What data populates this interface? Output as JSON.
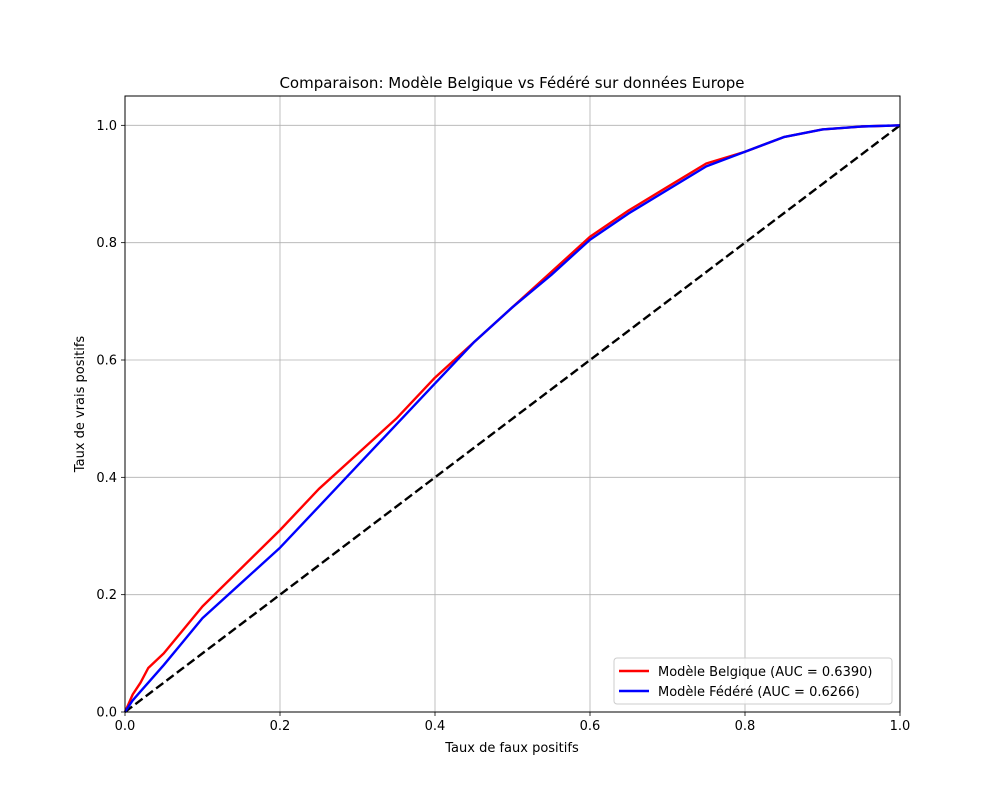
{
  "chart_data": {
    "type": "line",
    "title": "Comparaison: Modèle Belgique vs Fédéré sur données Europe",
    "xlabel": "Taux de faux positifs",
    "ylabel": "Taux de vrais positifs",
    "xlim": [
      0.0,
      1.0
    ],
    "ylim": [
      0.0,
      1.05
    ],
    "x_ticks": [
      "0.0",
      "0.2",
      "0.4",
      "0.6",
      "0.8",
      "1.0"
    ],
    "y_ticks": [
      "0.0",
      "0.2",
      "0.4",
      "0.6",
      "0.8",
      "1.0"
    ],
    "grid": true,
    "legend_position": "lower-right",
    "series": [
      {
        "name": "Modèle Belgique (AUC = 0.6390)",
        "color": "#ff0000",
        "style": "solid",
        "points": [
          [
            0,
            0
          ],
          [
            0.01,
            0.03
          ],
          [
            0.02,
            0.05
          ],
          [
            0.03,
            0.075
          ],
          [
            0.05,
            0.1
          ],
          [
            0.075,
            0.14
          ],
          [
            0.1,
            0.18
          ],
          [
            0.15,
            0.245
          ],
          [
            0.2,
            0.31
          ],
          [
            0.25,
            0.38
          ],
          [
            0.3,
            0.44
          ],
          [
            0.35,
            0.5
          ],
          [
            0.4,
            0.57
          ],
          [
            0.45,
            0.63
          ],
          [
            0.5,
            0.69
          ],
          [
            0.55,
            0.75
          ],
          [
            0.6,
            0.81
          ],
          [
            0.65,
            0.855
          ],
          [
            0.7,
            0.895
          ],
          [
            0.75,
            0.935
          ],
          [
            0.8,
            0.955
          ],
          [
            0.85,
            0.98
          ],
          [
            0.9,
            0.993
          ],
          [
            0.95,
            0.998
          ],
          [
            1.0,
            1.0
          ]
        ]
      },
      {
        "name": "Modèle Fédéré (AUC = 0.6266)",
        "color": "#0000ff",
        "style": "solid",
        "points": [
          [
            0,
            0
          ],
          [
            0.01,
            0.02
          ],
          [
            0.02,
            0.035
          ],
          [
            0.03,
            0.05
          ],
          [
            0.05,
            0.08
          ],
          [
            0.075,
            0.12
          ],
          [
            0.1,
            0.16
          ],
          [
            0.15,
            0.22
          ],
          [
            0.2,
            0.28
          ],
          [
            0.25,
            0.35
          ],
          [
            0.3,
            0.42
          ],
          [
            0.35,
            0.49
          ],
          [
            0.4,
            0.56
          ],
          [
            0.45,
            0.63
          ],
          [
            0.5,
            0.69
          ],
          [
            0.55,
            0.745
          ],
          [
            0.6,
            0.805
          ],
          [
            0.65,
            0.85
          ],
          [
            0.7,
            0.89
          ],
          [
            0.75,
            0.93
          ],
          [
            0.8,
            0.955
          ],
          [
            0.85,
            0.98
          ],
          [
            0.9,
            0.993
          ],
          [
            0.95,
            0.998
          ],
          [
            1.0,
            1.0
          ]
        ]
      },
      {
        "name": "",
        "color": "#000000",
        "style": "dashed",
        "points": [
          [
            0,
            0
          ],
          [
            1,
            1
          ]
        ]
      }
    ]
  }
}
